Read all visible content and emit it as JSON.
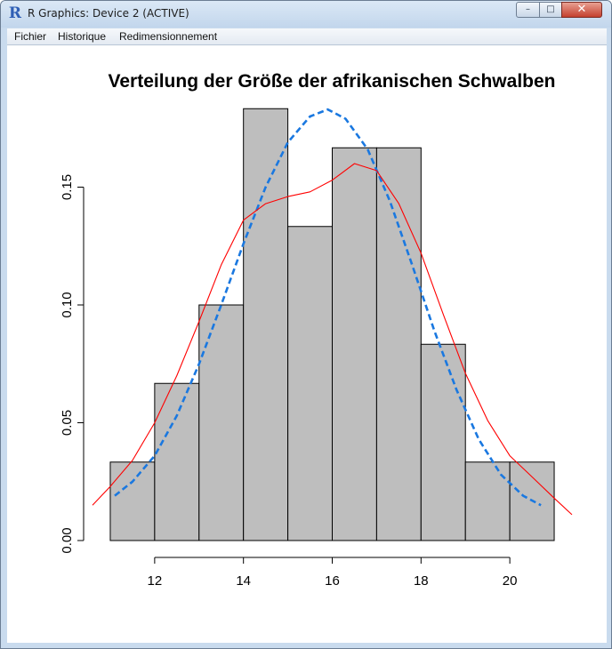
{
  "window": {
    "title": "R Graphics: Device 2 (ACTIVE)",
    "app_icon": "R",
    "controls": {
      "minimize": "–",
      "maximize": "□",
      "close": "✕"
    }
  },
  "menu": {
    "items": [
      "Fichier",
      "Historique",
      "Redimensionnement"
    ]
  },
  "chart_data": {
    "type": "bar",
    "title": "Verteilung der Größe der afrikanischen Schwalben",
    "xlabel": "",
    "ylabel": "",
    "xlim": [
      10.6,
      21.4
    ],
    "ylim": [
      0,
      0.18
    ],
    "x_ticks": [
      12,
      14,
      16,
      18,
      20
    ],
    "y_ticks": [
      0.0,
      0.05,
      0.1,
      0.15
    ],
    "x_tick_labels": [
      "12",
      "14",
      "16",
      "18",
      "20"
    ],
    "y_tick_labels": [
      "0.00",
      "0.05",
      "0.10",
      "0.15"
    ],
    "bar_color": "#bebebe",
    "bins": [
      {
        "from": 11,
        "to": 12,
        "density": 0.0333
      },
      {
        "from": 12,
        "to": 13,
        "density": 0.0667
      },
      {
        "from": 13,
        "to": 14,
        "density": 0.1
      },
      {
        "from": 14,
        "to": 15,
        "density": 0.1833
      },
      {
        "from": 15,
        "to": 16,
        "density": 0.1333
      },
      {
        "from": 16,
        "to": 17,
        "density": 0.1667
      },
      {
        "from": 17,
        "to": 18,
        "density": 0.1667
      },
      {
        "from": 18,
        "to": 19,
        "density": 0.0833
      },
      {
        "from": 19,
        "to": 20,
        "density": 0.0333
      },
      {
        "from": 20,
        "to": 21,
        "density": 0.0333
      }
    ],
    "series": [
      {
        "style": "dashed",
        "color": "#1a78e0",
        "points": [
          [
            11.1,
            0.019
          ],
          [
            11.5,
            0.025
          ],
          [
            12,
            0.036
          ],
          [
            12.5,
            0.053
          ],
          [
            13,
            0.075
          ],
          [
            13.5,
            0.1
          ],
          [
            14,
            0.126
          ],
          [
            14.5,
            0.15
          ],
          [
            15,
            0.169
          ],
          [
            15.5,
            0.18
          ],
          [
            15.9,
            0.183
          ],
          [
            16.3,
            0.179
          ],
          [
            16.8,
            0.166
          ],
          [
            17.3,
            0.144
          ],
          [
            17.8,
            0.117
          ],
          [
            18.3,
            0.089
          ],
          [
            18.8,
            0.064
          ],
          [
            19.3,
            0.043
          ],
          [
            19.8,
            0.028
          ],
          [
            20.3,
            0.019
          ],
          [
            20.7,
            0.015
          ]
        ]
      },
      {
        "style": "solid",
        "color": "#ff0000",
        "points": [
          [
            10.6,
            0.015
          ],
          [
            11,
            0.023
          ],
          [
            11.5,
            0.034
          ],
          [
            12,
            0.05
          ],
          [
            12.5,
            0.07
          ],
          [
            13,
            0.093
          ],
          [
            13.5,
            0.117
          ],
          [
            14,
            0.136
          ],
          [
            14.5,
            0.143
          ],
          [
            15,
            0.146
          ],
          [
            15.5,
            0.148
          ],
          [
            16,
            0.153
          ],
          [
            16.5,
            0.16
          ],
          [
            17,
            0.157
          ],
          [
            17.5,
            0.143
          ],
          [
            18,
            0.122
          ],
          [
            18.5,
            0.096
          ],
          [
            19,
            0.071
          ],
          [
            19.5,
            0.051
          ],
          [
            20,
            0.036
          ],
          [
            20.5,
            0.027
          ],
          [
            21,
            0.018
          ],
          [
            21.4,
            0.011
          ]
        ]
      }
    ]
  }
}
